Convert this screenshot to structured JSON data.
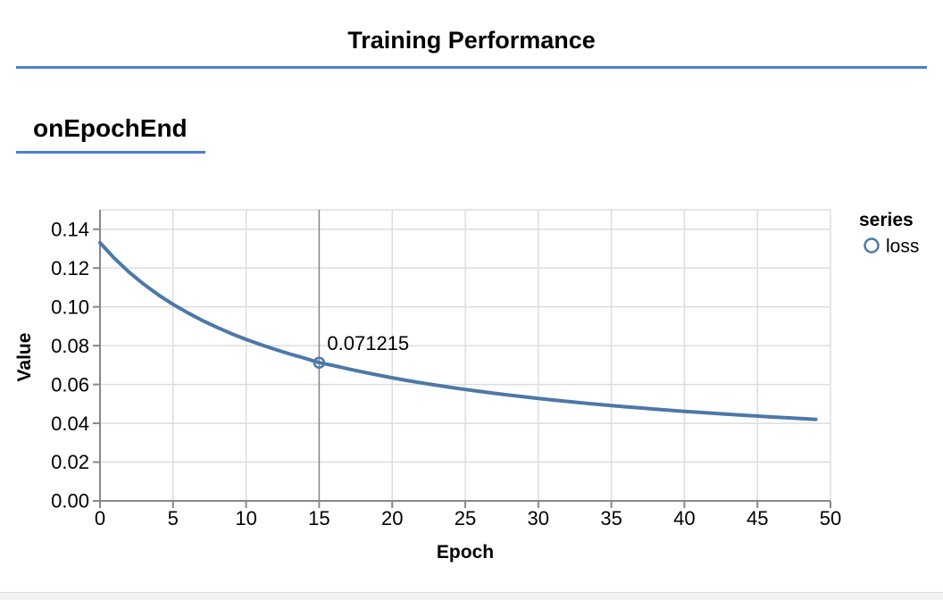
{
  "header": {
    "title": "Training Performance"
  },
  "section": {
    "title": "onEpochEnd"
  },
  "colors": {
    "accent_blue": "#4a7fd4",
    "series_loss": "#4c78a8",
    "axis": "#888888",
    "grid": "#dddddd",
    "rule": "#888888",
    "text": "#000000",
    "bottom_edge": "#f2f2f2"
  },
  "chart_data": {
    "type": "line",
    "title": "",
    "xlabel": "Epoch",
    "ylabel": "Value",
    "xlim": [
      0,
      50
    ],
    "ylim": [
      0,
      0.15
    ],
    "grid": true,
    "x_ticks": [
      0,
      5,
      10,
      15,
      20,
      25,
      30,
      35,
      40,
      45,
      50
    ],
    "y_ticks": [
      "0.00",
      "0.02",
      "0.04",
      "0.06",
      "0.08",
      "0.10",
      "0.12",
      "0.14"
    ],
    "legend": {
      "position": "right",
      "title": "series",
      "entries": [
        {
          "label": "loss",
          "symbol": "open-circle",
          "color": "#4c78a8"
        }
      ]
    },
    "series": [
      {
        "name": "loss",
        "color": "#4c78a8",
        "x": [
          0,
          1,
          2,
          3,
          4,
          5,
          6,
          7,
          8,
          9,
          10,
          11,
          12,
          13,
          14,
          15,
          16,
          17,
          18,
          19,
          20,
          21,
          22,
          23,
          24,
          25,
          26,
          27,
          28,
          29,
          30,
          31,
          32,
          33,
          34,
          35,
          36,
          37,
          38,
          39,
          40,
          41,
          42,
          43,
          44,
          45,
          46,
          47,
          48,
          49
        ],
        "values": [
          0.13303,
          0.124894,
          0.117829,
          0.111636,
          0.106163,
          0.101291,
          0.096927,
          0.092995,
          0.089434,
          0.086194,
          0.083233,
          0.080517,
          0.078016,
          0.075706,
          0.073566,
          0.071215,
          0.069726,
          0.067997,
          0.066378,
          0.06486,
          0.063434,
          0.062091,
          0.060824,
          0.059627,
          0.058495,
          0.057421,
          0.056403,
          0.055435,
          0.054515,
          0.053637,
          0.052801,
          0.052002,
          0.051239,
          0.050509,
          0.049809,
          0.049139,
          0.048496,
          0.047878,
          0.047285,
          0.046715,
          0.046165,
          0.045637,
          0.045127,
          0.044635,
          0.044161,
          0.043703,
          0.04326,
          0.042832,
          0.042418,
          0.042018
        ]
      }
    ],
    "hover": {
      "series": "loss",
      "x": 15,
      "value": 0.071215,
      "label": "0.071215"
    }
  }
}
